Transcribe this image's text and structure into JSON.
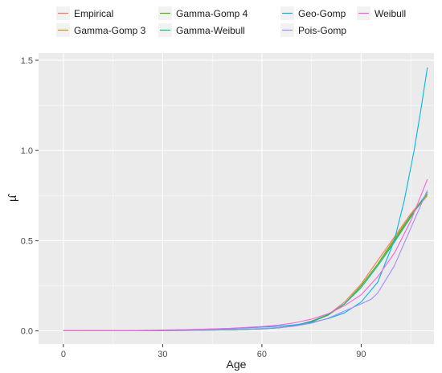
{
  "chart_data": {
    "type": "line",
    "title": "",
    "xlabel": "Age",
    "ylabel": "µ̂",
    "xlim": [
      -7.5,
      112
    ],
    "ylim": [
      -0.073,
      1.54
    ],
    "x_ticks": [
      0,
      30,
      60,
      90
    ],
    "y_ticks": [
      0.0,
      0.5,
      1.0,
      1.5
    ],
    "y_tick_labels": [
      "0.0",
      "0.5",
      "1.0",
      "1.5"
    ],
    "grid": true,
    "legend_position": "top",
    "series": [
      {
        "name": "Empirical",
        "color": "#F8766D",
        "x": [
          0,
          20,
          40,
          50,
          60,
          65,
          70,
          75,
          80,
          85,
          90,
          95,
          100,
          105,
          110
        ],
        "y": [
          0.002,
          0.001,
          0.003,
          0.006,
          0.012,
          0.018,
          0.03,
          0.055,
          0.09,
          0.16,
          0.26,
          0.39,
          0.52,
          0.65,
          0.76
        ]
      },
      {
        "name": "Gamma-Gomp 3",
        "color": "#C49A00",
        "x": [
          0,
          20,
          40,
          50,
          60,
          65,
          70,
          75,
          80,
          85,
          90,
          95,
          100,
          105,
          110
        ],
        "y": [
          0.001,
          0.001,
          0.003,
          0.006,
          0.011,
          0.017,
          0.028,
          0.05,
          0.087,
          0.15,
          0.25,
          0.37,
          0.51,
          0.64,
          0.75
        ]
      },
      {
        "name": "Gamma-Gomp 4",
        "color": "#53B400",
        "x": [
          0,
          20,
          40,
          50,
          60,
          65,
          70,
          75,
          80,
          85,
          90,
          95,
          100,
          105,
          110
        ],
        "y": [
          0.001,
          0.001,
          0.003,
          0.006,
          0.011,
          0.017,
          0.028,
          0.05,
          0.087,
          0.15,
          0.25,
          0.37,
          0.5,
          0.64,
          0.76
        ]
      },
      {
        "name": "Gamma-Weibull",
        "color": "#00C094",
        "x": [
          0,
          20,
          40,
          50,
          60,
          65,
          70,
          75,
          80,
          85,
          90,
          95,
          100,
          105,
          110
        ],
        "y": [
          0.001,
          0.001,
          0.003,
          0.006,
          0.011,
          0.017,
          0.029,
          0.052,
          0.09,
          0.15,
          0.24,
          0.36,
          0.49,
          0.63,
          0.77
        ]
      },
      {
        "name": "Geo-Gomp",
        "color": "#00B6EB",
        "x": [
          34,
          40,
          50,
          60,
          65,
          70,
          75,
          80,
          85,
          90,
          95,
          100,
          103,
          106,
          108,
          110
        ],
        "y": [
          0.006,
          0.008,
          0.013,
          0.021,
          0.026,
          0.034,
          0.047,
          0.068,
          0.1,
          0.16,
          0.27,
          0.5,
          0.72,
          1.0,
          1.22,
          1.46
        ]
      },
      {
        "name": "Pois-Gomp",
        "color": "#A58AFF",
        "x": [
          0,
          20,
          40,
          50,
          60,
          65,
          70,
          75,
          80,
          85,
          90,
          93,
          95,
          100,
          105,
          110
        ],
        "y": [
          0.001,
          0.001,
          0.004,
          0.008,
          0.013,
          0.018,
          0.027,
          0.043,
          0.07,
          0.11,
          0.15,
          0.175,
          0.21,
          0.36,
          0.57,
          0.78
        ]
      },
      {
        "name": "Weibull",
        "color": "#FB61D7",
        "x": [
          0,
          20,
          40,
          50,
          60,
          65,
          70,
          75,
          80,
          85,
          90,
          95,
          100,
          105,
          110
        ],
        "y": [
          0.001,
          0.002,
          0.008,
          0.014,
          0.024,
          0.032,
          0.045,
          0.065,
          0.095,
          0.14,
          0.2,
          0.3,
          0.43,
          0.61,
          0.84
        ]
      }
    ]
  }
}
